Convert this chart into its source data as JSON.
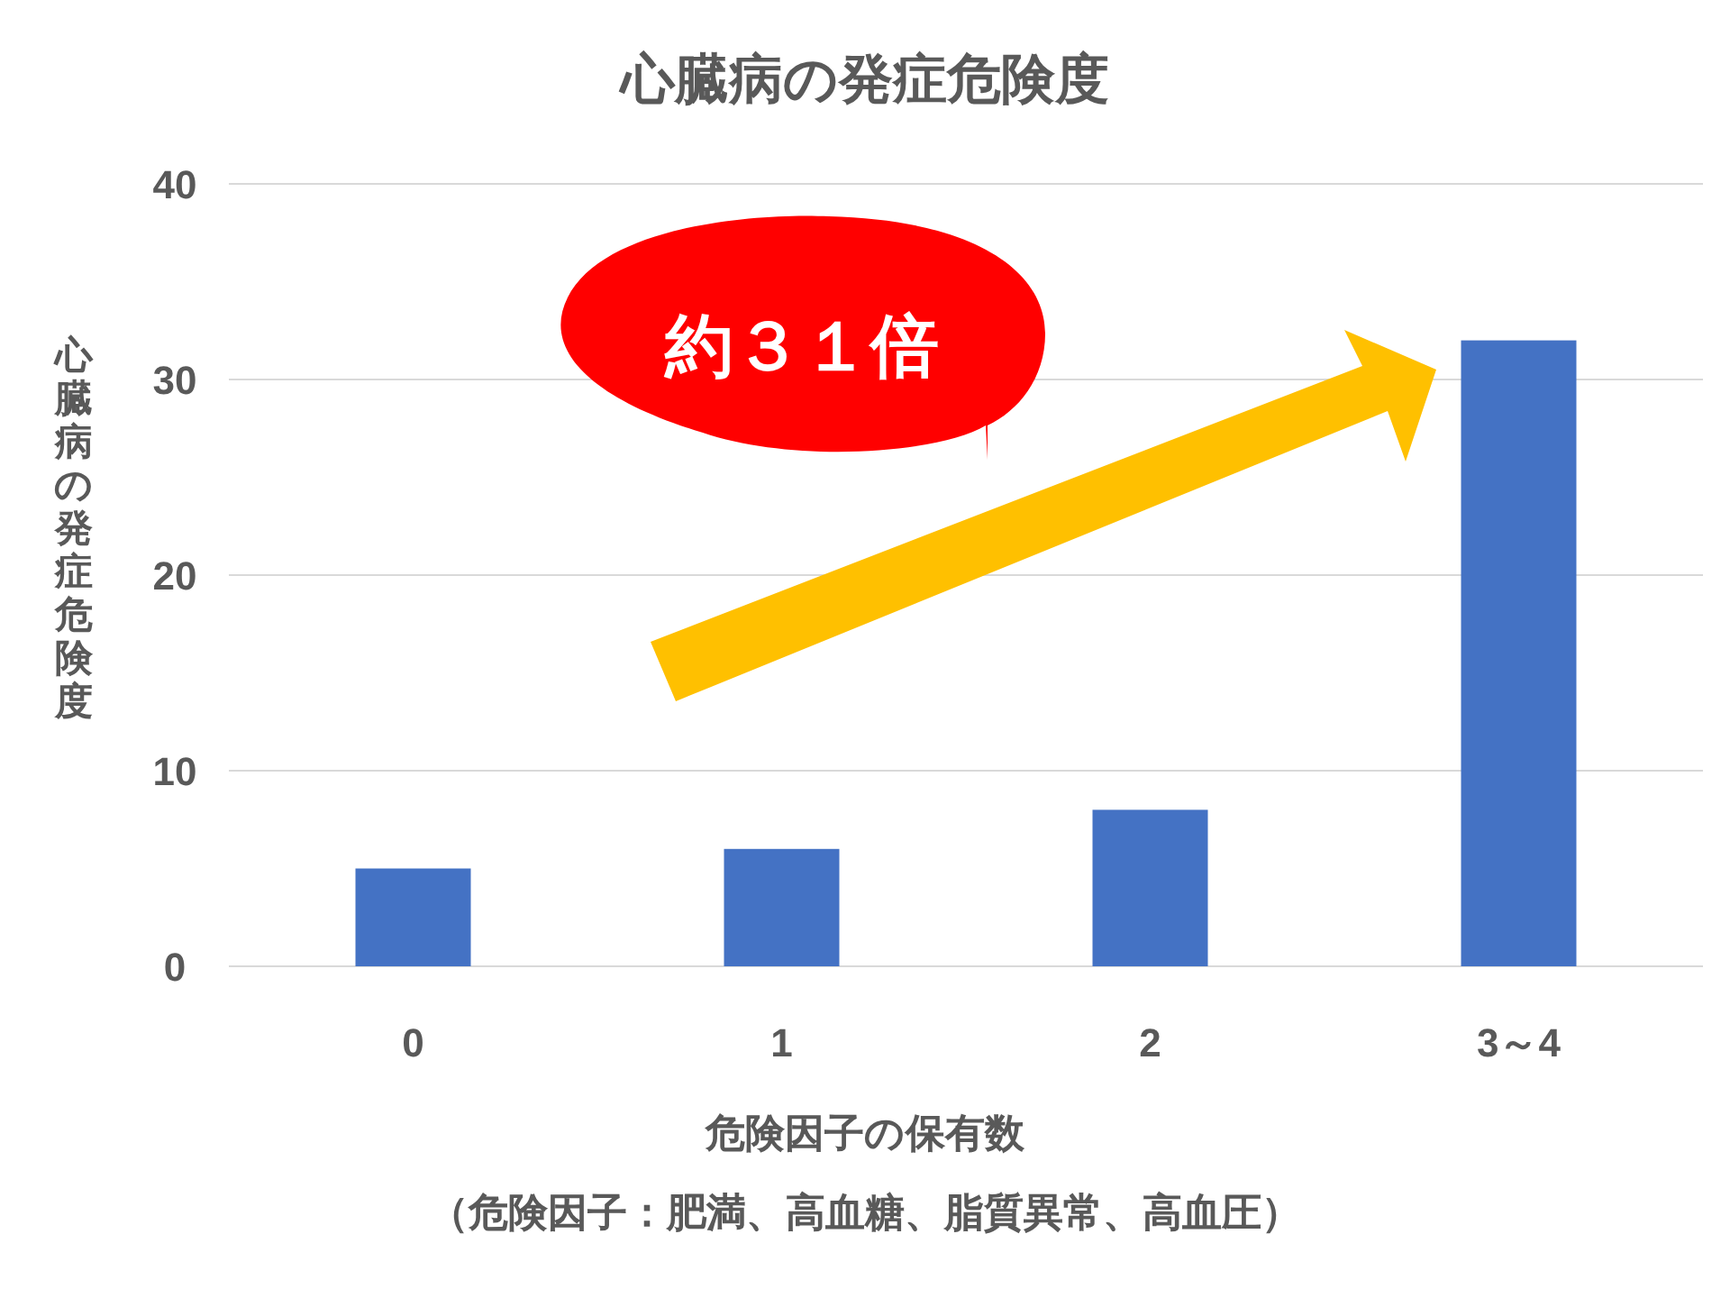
{
  "chart_data": {
    "type": "bar",
    "title": "心臓病の発症危険度",
    "xlabel": "危険因子の保有数",
    "ylabel": "心臓病の発症危険度",
    "categories": [
      "0",
      "1",
      "2",
      "3～4"
    ],
    "values": [
      5,
      6,
      8,
      32
    ],
    "color": "#4472c4",
    "ylim": [
      0,
      40
    ],
    "yticks": [
      0,
      10,
      20,
      30,
      40
    ],
    "grid": "y",
    "annotations": [
      "約３１倍",
      "（危険因子：肥満、高血糖、脂質異常、高血圧）"
    ]
  }
}
